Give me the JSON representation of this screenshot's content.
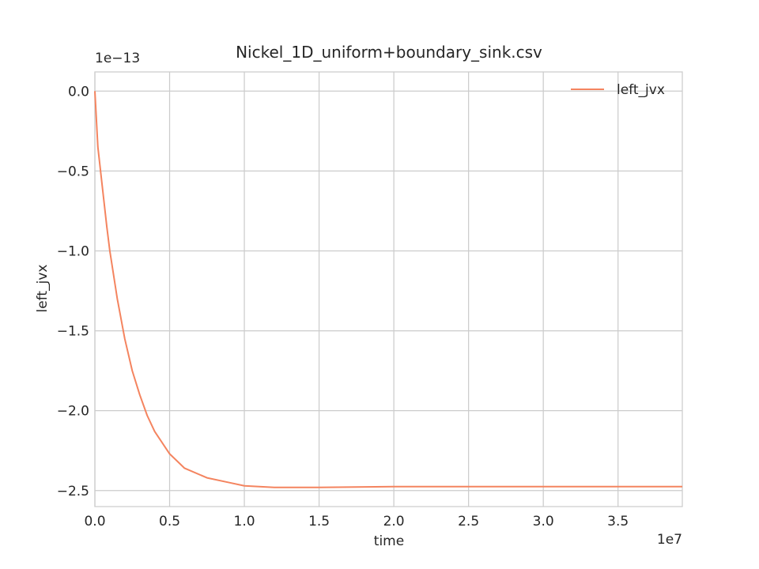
{
  "chart_data": {
    "type": "line",
    "title": "Nickel_1D_uniform+boundary_sink.csv",
    "xlabel": "time",
    "ylabel": "left_jvx",
    "x_offset_label": "1e7",
    "y_offset_label": "1e−13",
    "xlim": [
      0.0,
      3.93
    ],
    "ylim": [
      -2.6,
      0.12
    ],
    "x_ticks": [
      0.0,
      0.5,
      1.0,
      1.5,
      2.0,
      2.5,
      3.0,
      3.5
    ],
    "x_tick_labels": [
      "0.0",
      "0.5",
      "1.0",
      "1.5",
      "2.0",
      "2.5",
      "3.0",
      "3.5"
    ],
    "y_ticks": [
      0.0,
      -0.5,
      -1.0,
      -1.5,
      -2.0,
      -2.5
    ],
    "y_tick_labels": [
      "0.0",
      "−0.5",
      "−1.0",
      "−1.5",
      "−2.0",
      "−2.5"
    ],
    "grid": true,
    "legend_position": "top-right",
    "series": [
      {
        "name": "left_jvx",
        "color": "#f4845f",
        "x": [
          0.0,
          0.02,
          0.05,
          0.08,
          0.1,
          0.15,
          0.2,
          0.25,
          0.3,
          0.35,
          0.4,
          0.5,
          0.6,
          0.75,
          0.9,
          1.0,
          1.2,
          1.5,
          2.0,
          2.5,
          3.0,
          3.5,
          3.93
        ],
        "y": [
          0.0,
          -0.35,
          -0.6,
          -0.85,
          -1.0,
          -1.3,
          -1.55,
          -1.75,
          -1.9,
          -2.03,
          -2.13,
          -2.27,
          -2.36,
          -2.42,
          -2.45,
          -2.47,
          -2.48,
          -2.48,
          -2.475,
          -2.475,
          -2.475,
          -2.475,
          -2.475
        ]
      }
    ]
  }
}
